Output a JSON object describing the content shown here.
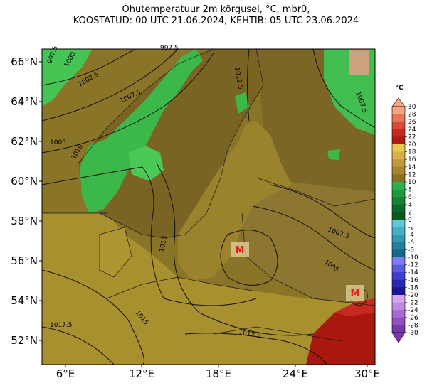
{
  "title": {
    "line1": "Õhutemperatuur 2m kõrgusel, °C, mbr0,",
    "line2": "KOOSTATUD: 00 UTC 21.06.2024, KEHTIB: 05 UTC 23.06.2024"
  },
  "axes": {
    "lat_labels": [
      "66°N",
      "64°N",
      "62°N",
      "60°N",
      "58°N",
      "56°N",
      "54°N",
      "52°N"
    ],
    "lon_labels": [
      "6°E",
      "12°E",
      "18°E",
      "24°E",
      "30°E"
    ]
  },
  "colorbar": {
    "unit": "°C",
    "levels": [
      "30",
      "28",
      "26",
      "24",
      "22",
      "20",
      "18",
      "16",
      "14",
      "12",
      "10",
      "8",
      "6",
      "4",
      "2",
      "0",
      "-2",
      "-4",
      "-6",
      "-8",
      "-10",
      "-12",
      "-14",
      "-16",
      "-18",
      "-20",
      "-22",
      "-24",
      "-26",
      "-28",
      "-30"
    ],
    "colors": [
      "#f4a582",
      "#e8735a",
      "#d94a3a",
      "#c8291f",
      "#b01c14",
      "#e6c84c",
      "#d8b046",
      "#c09a3c",
      "#a8862e",
      "#8c7022",
      "#2bb24c",
      "#1f9a3c",
      "#168232",
      "#0e6a28",
      "#0a5a20",
      "#5ec8d8",
      "#48b0c4",
      "#3498b0",
      "#22809c",
      "#166888",
      "#7b7cf0",
      "#5c5ce0",
      "#3e3ecc",
      "#2828b0",
      "#181894",
      "#d7a6f0",
      "#c088e0",
      "#a86ad0",
      "#9250bc",
      "#7a38a8"
    ]
  },
  "isobar_labels": [
    "997.5",
    "1000",
    "1002.5",
    "1005",
    "1007.5",
    "1010",
    "1012.5",
    "1015",
    "1017.5"
  ],
  "low_markers": [
    "M",
    "M"
  ],
  "colors": {
    "sea_olive": "#8f7a2a",
    "land_brown": "#7f6827",
    "land_light": "#a8902e",
    "warm_red": "#a8180f",
    "mountain_green": "#3cb84a"
  }
}
